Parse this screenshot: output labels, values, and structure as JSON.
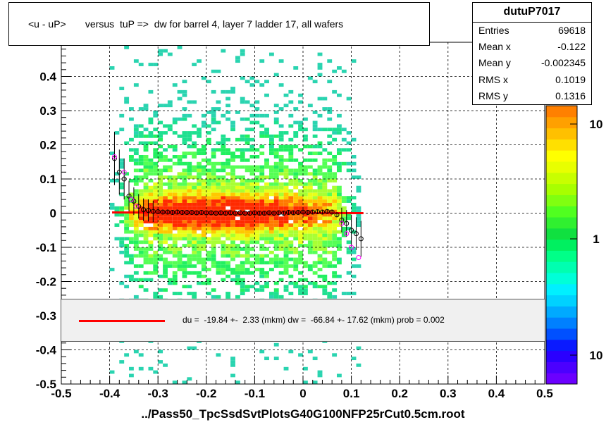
{
  "title": "<u - uP>       versus  tuP =>  dw for barrel 4, layer 7 ladder 17, all wafers",
  "footer": "../Pass50_TpcSsdSvtPlotsG40G100NFP25rCut0.5cm.root",
  "stats": {
    "name": "dutuP7017",
    "rows": [
      {
        "label": "Entries",
        "value": "69618"
      },
      {
        "label": "Mean x",
        "value": "-0.122"
      },
      {
        "label": "Mean y",
        "value": "-0.002345"
      },
      {
        "label": "RMS x",
        "value": "0.1019"
      },
      {
        "label": "RMS y",
        "value": "0.1316"
      }
    ]
  },
  "fit_text": "du =  -19.84 +-  2.33 (mkm) dw =  -66.84 +- 17.62 (mkm) prob = 0.002",
  "colors": {
    "fit_line": "#ff0000",
    "profile_black": "#000000",
    "profile_magenta": "#ff00ff"
  },
  "chart_data": {
    "type": "heatmap",
    "x_ticks": [
      "-0.5",
      "-0.4",
      "-0.3",
      "-0.2",
      "-0.1",
      "0",
      "0.1",
      "0.2",
      "0.3",
      "0.4",
      "0.5"
    ],
    "y_ticks": [
      "-0.5",
      "-0.4",
      "-0.3",
      "-0.2",
      "-0.1",
      "0",
      "0.1",
      "0.2",
      "0.3",
      "0.4"
    ],
    "xlim": [
      -0.5,
      0.5
    ],
    "ylim": [
      -0.5,
      0.5
    ],
    "grid": true,
    "colorbar_labels": [
      "10",
      "1",
      "10"
    ],
    "fit_line": {
      "x": [
        -0.395,
        0.125
      ],
      "y": [
        0.002,
        0.0
      ]
    },
    "profile_black": {
      "x": [
        -0.39,
        -0.38,
        -0.37,
        -0.36,
        -0.35,
        -0.34,
        -0.33,
        -0.32,
        -0.31,
        -0.3,
        -0.29,
        -0.28,
        -0.27,
        -0.26,
        -0.25,
        -0.24,
        -0.23,
        -0.22,
        -0.21,
        -0.2,
        -0.19,
        -0.18,
        -0.17,
        -0.16,
        -0.15,
        -0.14,
        -0.13,
        -0.12,
        -0.11,
        -0.1,
        -0.09,
        -0.08,
        -0.07,
        -0.06,
        -0.05,
        -0.04,
        -0.03,
        -0.02,
        -0.01,
        0.0,
        0.01,
        0.02,
        0.03,
        0.04,
        0.05,
        0.06,
        0.07,
        0.08,
        0.09,
        0.1,
        0.11,
        0.12
      ],
      "y": [
        0.16,
        0.12,
        0.1,
        0.05,
        0.035,
        0.02,
        0.01,
        0.008,
        0.005,
        0.004,
        0.003,
        0.003,
        0.002,
        0.003,
        0.002,
        0.002,
        0.002,
        0.001,
        0.002,
        0.001,
        0.001,
        0.0,
        0.001,
        0.0,
        0.001,
        0.0,
        0.001,
        0.0,
        0.0,
        0.001,
        0.0,
        0.0,
        0.001,
        0.0,
        0.001,
        0.0,
        0.002,
        0.001,
        0.002,
        0.003,
        0.002,
        0.003,
        0.004,
        0.003,
        0.005,
        0.003,
        -0.005,
        -0.02,
        -0.03,
        -0.05,
        -0.06,
        -0.075
      ]
    },
    "profile_magenta": {
      "x": [
        -0.39,
        -0.37,
        -0.355,
        -0.345,
        0.08,
        0.09,
        0.1,
        0.115
      ],
      "y": [
        0.165,
        0.12,
        0.04,
        0.02,
        -0.03,
        -0.06,
        -0.1,
        -0.13
      ]
    }
  }
}
